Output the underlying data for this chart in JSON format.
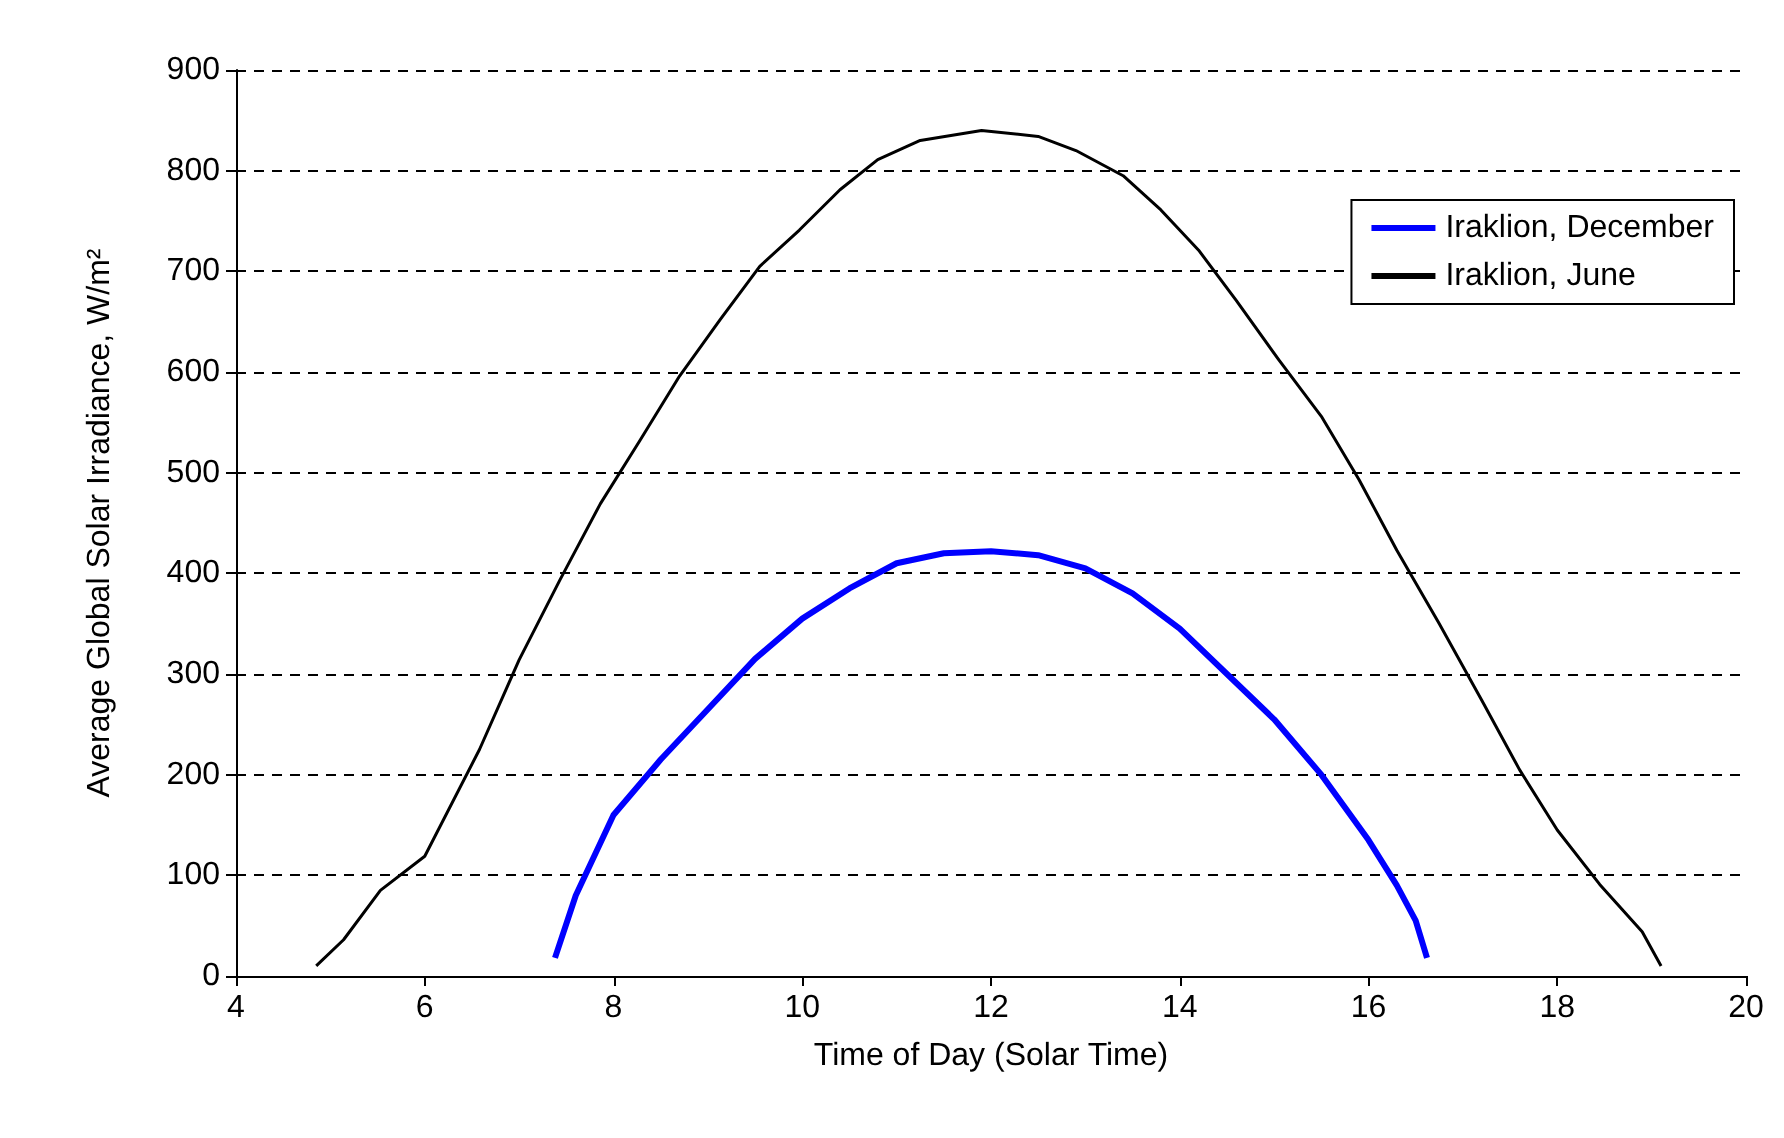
{
  "chart_data": {
    "type": "line",
    "xlabel": "Time of Day (Solar Time)",
    "ylabel": "Average Global Solar Irradiance, W/m²",
    "xlim": [
      4,
      20
    ],
    "xticks": [
      4,
      6,
      8,
      10,
      12,
      14,
      16,
      18,
      20
    ],
    "ylim": [
      0,
      900
    ],
    "yticks": [
      0,
      100,
      200,
      300,
      400,
      500,
      600,
      700,
      800,
      900
    ],
    "grid": "y",
    "legend": "top right",
    "marker": "none",
    "line_style": "solid",
    "series": [
      {
        "name": "Iraklion, December",
        "color": "#0000ff",
        "x": [
          7.38,
          7.6,
          8,
          8.5,
          9,
          9.5,
          10,
          10.5,
          11,
          11.5,
          12,
          12.5,
          13,
          13.5,
          14,
          14.5,
          15,
          15.5,
          16,
          16.3,
          16.5,
          16.62
        ],
        "values": [
          18,
          80,
          160,
          215,
          265,
          315,
          355,
          385,
          410,
          420,
          422,
          418,
          405,
          380,
          345,
          300,
          255,
          200,
          135,
          90,
          55,
          18
        ]
      },
      {
        "name": "Iraklion, June",
        "color": "#000000",
        "x": [
          4.85,
          5.14,
          5.53,
          6,
          6.58,
          7,
          7.43,
          7.86,
          8.28,
          8.7,
          9.13,
          9.55,
          9.97,
          10.4,
          10.8,
          11.25,
          11.9,
          12.5,
          12.9,
          13.4,
          13.8,
          14.2,
          14.6,
          15.05,
          15.5,
          15.9,
          16.3,
          16.75,
          17.2,
          17.6,
          18,
          18.45,
          18.9,
          19.1
        ],
        "values": [
          10,
          36,
          85,
          119,
          225,
          314,
          393,
          469,
          532,
          596,
          652,
          705,
          741,
          781,
          811,
          830,
          840,
          834,
          820,
          795,
          761,
          721,
          671,
          612,
          556,
          493,
          423,
          350,
          274,
          205,
          145,
          91,
          44,
          10
        ]
      }
    ]
  }
}
